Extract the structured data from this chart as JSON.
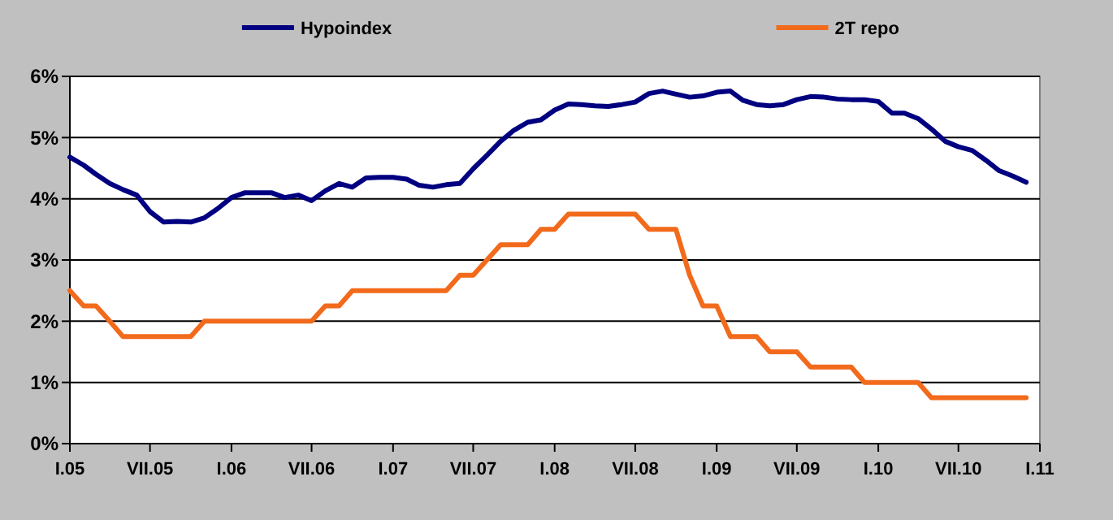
{
  "chart_data": {
    "type": "line",
    "x": [
      "2005-01",
      "2005-02",
      "2005-03",
      "2005-04",
      "2005-05",
      "2005-06",
      "2005-07",
      "2005-08",
      "2005-09",
      "2005-10",
      "2005-11",
      "2005-12",
      "2006-01",
      "2006-02",
      "2006-03",
      "2006-04",
      "2006-05",
      "2006-06",
      "2006-07",
      "2006-08",
      "2006-09",
      "2006-10",
      "2006-11",
      "2006-12",
      "2007-01",
      "2007-02",
      "2007-03",
      "2007-04",
      "2007-05",
      "2007-06",
      "2007-07",
      "2007-08",
      "2007-09",
      "2007-10",
      "2007-11",
      "2007-12",
      "2008-01",
      "2008-02",
      "2008-03",
      "2008-04",
      "2008-05",
      "2008-06",
      "2008-07",
      "2008-08",
      "2008-09",
      "2008-10",
      "2008-11",
      "2008-12",
      "2009-01",
      "2009-02",
      "2009-03",
      "2009-04",
      "2009-05",
      "2009-06",
      "2009-07",
      "2009-08",
      "2009-09",
      "2009-10",
      "2009-11",
      "2009-12",
      "2010-01",
      "2010-02",
      "2010-03",
      "2010-04",
      "2010-05",
      "2010-06",
      "2010-07",
      "2010-08",
      "2010-09",
      "2010-10",
      "2010-11",
      "2010-12"
    ],
    "series": [
      {
        "name": "Hypoindex",
        "color": "#000080",
        "values": [
          4.68,
          4.55,
          4.4,
          4.25,
          4.15,
          4.06,
          3.79,
          3.62,
          3.63,
          3.62,
          3.69,
          3.84,
          4.02,
          4.1,
          4.1,
          4.1,
          4.02,
          4.06,
          3.97,
          4.13,
          4.25,
          4.19,
          4.34,
          4.35,
          4.35,
          4.32,
          4.22,
          4.19,
          4.23,
          4.25,
          4.49,
          4.71,
          4.94,
          5.12,
          5.25,
          5.29,
          5.45,
          5.55,
          5.54,
          5.52,
          5.51,
          5.54,
          5.58,
          5.72,
          5.76,
          5.71,
          5.66,
          5.68,
          5.74,
          5.76,
          5.61,
          5.54,
          5.52,
          5.54,
          5.62,
          5.67,
          5.66,
          5.63,
          5.62,
          5.62,
          5.59,
          5.4,
          5.4,
          5.31,
          5.14,
          4.94,
          4.85,
          4.79,
          4.63,
          4.46,
          4.37,
          4.27
        ]
      },
      {
        "name": "2T repo",
        "color": "#f26a1b",
        "values": [
          2.5,
          2.25,
          2.25,
          2.0,
          1.75,
          1.75,
          1.75,
          1.75,
          1.75,
          1.75,
          2.0,
          2.0,
          2.0,
          2.0,
          2.0,
          2.0,
          2.0,
          2.0,
          2.0,
          2.25,
          2.25,
          2.5,
          2.5,
          2.5,
          2.5,
          2.5,
          2.5,
          2.5,
          2.5,
          2.75,
          2.75,
          3.0,
          3.25,
          3.25,
          3.25,
          3.5,
          3.5,
          3.75,
          3.75,
          3.75,
          3.75,
          3.75,
          3.75,
          3.5,
          3.5,
          3.5,
          2.75,
          2.25,
          2.25,
          1.75,
          1.75,
          1.75,
          1.5,
          1.5,
          1.5,
          1.25,
          1.25,
          1.25,
          1.25,
          1.0,
          1.0,
          1.0,
          1.0,
          1.0,
          0.75,
          0.75,
          0.75,
          0.75,
          0.75,
          0.75,
          0.75,
          0.75
        ]
      }
    ],
    "xlim": [
      "2005-01",
      "2011-01"
    ],
    "xticks": [
      {
        "value": "2005-01",
        "label": "I.05"
      },
      {
        "value": "2005-07",
        "label": "VII.05"
      },
      {
        "value": "2006-01",
        "label": "I.06"
      },
      {
        "value": "2006-07",
        "label": "VII.06"
      },
      {
        "value": "2007-01",
        "label": "I.07"
      },
      {
        "value": "2007-07",
        "label": "VII.07"
      },
      {
        "value": "2008-01",
        "label": "I.08"
      },
      {
        "value": "2008-07",
        "label": "VII.08"
      },
      {
        "value": "2009-01",
        "label": "I.09"
      },
      {
        "value": "2009-07",
        "label": "VII.09"
      },
      {
        "value": "2010-01",
        "label": "I.10"
      },
      {
        "value": "2010-07",
        "label": "VII.10"
      },
      {
        "value": "2011-01",
        "label": "I.11"
      }
    ],
    "ylim": [
      0,
      6
    ],
    "yticks": [
      {
        "value": 0,
        "label": "0%"
      },
      {
        "value": 1,
        "label": "1%"
      },
      {
        "value": 2,
        "label": "2%"
      },
      {
        "value": 3,
        "label": "3%"
      },
      {
        "value": 4,
        "label": "4%"
      },
      {
        "value": 5,
        "label": "5%"
      },
      {
        "value": 6,
        "label": "6%"
      }
    ],
    "grid": "y",
    "legend": "top",
    "marker": "none",
    "line_style": "solid"
  }
}
